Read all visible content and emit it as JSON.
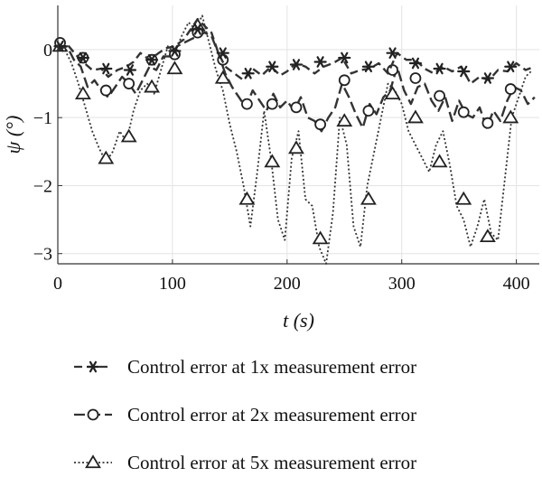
{
  "chart_data": {
    "type": "line",
    "xlabel": "t (s)",
    "ylabel": "ψ (°)",
    "xlim": [
      0,
      420
    ],
    "ylim": [
      -3.15,
      0.65
    ],
    "x_ticks": [
      0,
      100,
      200,
      300,
      400
    ],
    "y_ticks": [
      0,
      -1,
      -2,
      -3
    ],
    "grid": true,
    "legend_position": "below",
    "series": [
      {
        "name": "Control error at 1x measurement error",
        "marker": "asterisk",
        "dash": "dashed",
        "color": "#333333",
        "x": [
          0,
          8,
          16,
          22,
          30,
          38,
          44,
          52,
          60,
          66,
          72,
          80,
          88,
          94,
          102,
          110,
          116,
          122,
          128,
          134,
          140,
          146,
          154,
          162,
          170,
          178,
          186,
          194,
          200,
          208,
          216,
          224,
          232,
          240,
          248,
          256,
          264,
          272,
          280,
          288,
          296,
          304,
          312,
          320,
          328,
          336,
          344,
          352,
          360,
          368,
          376,
          384,
          392,
          400,
          408,
          416
        ],
        "y": [
          0.0,
          0.08,
          -0.08,
          -0.18,
          -0.3,
          -0.28,
          -0.4,
          -0.3,
          -0.25,
          -0.18,
          -0.05,
          -0.15,
          -0.05,
          0.02,
          0.05,
          0.15,
          0.3,
          0.45,
          0.35,
          0.25,
          -0.05,
          -0.25,
          -0.35,
          -0.45,
          -0.28,
          -0.38,
          -0.25,
          -0.38,
          -0.32,
          -0.2,
          -0.25,
          -0.35,
          -0.25,
          -0.2,
          -0.12,
          -0.35,
          -0.3,
          -0.28,
          -0.2,
          -0.35,
          -0.05,
          -0.15,
          -0.15,
          -0.28,
          -0.35,
          -0.25,
          -0.32,
          -0.25,
          -0.5,
          -0.4,
          -0.45,
          -0.3,
          -0.32,
          -0.2,
          -0.3,
          -0.25
        ],
        "marker_x": [
          2,
          22,
          42,
          63,
          82,
          102,
          122,
          144,
          166,
          187,
          208,
          229,
          250,
          271,
          292,
          312,
          333,
          354,
          375,
          395
        ],
        "marker_y": [
          0.05,
          -0.12,
          -0.28,
          -0.3,
          -0.15,
          -0.02,
          0.3,
          -0.05,
          -0.35,
          -0.25,
          -0.22,
          -0.18,
          -0.12,
          -0.25,
          -0.05,
          -0.2,
          -0.28,
          -0.32,
          -0.42,
          -0.25
        ]
      },
      {
        "name": "Control error at 2x measurement error",
        "marker": "circle",
        "dash": "longdash",
        "color": "#333333",
        "x": [
          0,
          8,
          14,
          20,
          26,
          32,
          38,
          44,
          50,
          56,
          62,
          68,
          74,
          80,
          86,
          92,
          98,
          104,
          110,
          116,
          122,
          128,
          134,
          140,
          146,
          152,
          158,
          164,
          170,
          176,
          182,
          188,
          194,
          200,
          206,
          212,
          218,
          224,
          230,
          236,
          242,
          248,
          254,
          260,
          266,
          272,
          278,
          284,
          290,
          296,
          302,
          308,
          314,
          320,
          326,
          332,
          338,
          344,
          350,
          356,
          362,
          368,
          374,
          380,
          386,
          392,
          398,
          404,
          410,
          416
        ],
        "y": [
          0.0,
          0.05,
          -0.15,
          -0.25,
          -0.55,
          -0.45,
          -0.6,
          -0.7,
          -0.55,
          -0.4,
          -0.5,
          -0.65,
          -0.45,
          -0.25,
          -0.3,
          -0.1,
          -0.1,
          0.05,
          0.1,
          0.15,
          0.2,
          0.25,
          0.2,
          -0.05,
          -0.35,
          -0.55,
          -0.7,
          -0.85,
          -0.6,
          -0.75,
          -0.9,
          -0.65,
          -0.85,
          -0.75,
          -0.9,
          -0.7,
          -1.0,
          -1.05,
          -1.2,
          -1.0,
          -0.85,
          -0.5,
          -0.7,
          -0.95,
          -1.15,
          -0.8,
          -0.95,
          -0.7,
          -0.6,
          -0.25,
          -0.6,
          -0.8,
          -0.55,
          -0.5,
          -0.75,
          -0.9,
          -0.7,
          -1.05,
          -0.75,
          -0.95,
          -1.0,
          -0.85,
          -1.15,
          -0.9,
          -1.05,
          -0.75,
          -0.55,
          -0.6,
          -0.8,
          -0.7
        ],
        "marker_x": [
          2,
          22,
          42,
          62,
          82,
          102,
          122,
          144,
          165,
          187,
          208,
          229,
          250,
          271,
          292,
          312,
          333,
          354,
          375,
          395
        ],
        "marker_y": [
          0.1,
          -0.12,
          -0.6,
          -0.5,
          -0.15,
          -0.07,
          0.25,
          -0.15,
          -0.8,
          -0.8,
          -0.85,
          -1.1,
          -0.45,
          -0.9,
          -0.3,
          -0.42,
          -0.68,
          -0.92,
          -1.08,
          -0.58
        ]
      },
      {
        "name": "Control error at 5x measurement error",
        "marker": "triangle",
        "dash": "dotted",
        "color": "#333333",
        "x": [
          0,
          6,
          12,
          18,
          24,
          30,
          36,
          42,
          48,
          54,
          60,
          66,
          72,
          78,
          84,
          90,
          96,
          102,
          108,
          114,
          120,
          126,
          132,
          138,
          144,
          150,
          156,
          162,
          168,
          174,
          180,
          186,
          192,
          198,
          204,
          210,
          216,
          222,
          228,
          234,
          240,
          246,
          252,
          258,
          264,
          270,
          276,
          282,
          288,
          294,
          300,
          306,
          312,
          318,
          324,
          330,
          336,
          342,
          348,
          354,
          360,
          366,
          372,
          378,
          384,
          390,
          396,
          402,
          408,
          414
        ],
        "y": [
          0.05,
          0.0,
          -0.2,
          -0.5,
          -0.85,
          -1.2,
          -1.45,
          -1.65,
          -1.5,
          -1.2,
          -1.35,
          -0.9,
          -0.6,
          -0.5,
          -0.65,
          -0.3,
          0.05,
          -0.05,
          0.2,
          0.4,
          0.3,
          0.5,
          0.1,
          -0.3,
          -0.6,
          -1.1,
          -1.5,
          -2.0,
          -2.6,
          -1.8,
          -0.9,
          -1.6,
          -2.5,
          -2.8,
          -1.6,
          -1.2,
          -2.2,
          -2.3,
          -2.9,
          -3.15,
          -2.4,
          -1.0,
          -1.4,
          -2.6,
          -2.9,
          -2.0,
          -1.5,
          -1.0,
          -0.5,
          -0.6,
          -0.8,
          -1.2,
          -1.4,
          -1.6,
          -1.8,
          -1.4,
          -1.2,
          -1.7,
          -2.3,
          -2.5,
          -2.9,
          -2.6,
          -2.2,
          -2.7,
          -2.8,
          -1.9,
          -1.0,
          -0.7,
          -0.4,
          -0.3
        ],
        "marker_x": [
          2,
          22,
          42,
          62,
          82,
          102,
          122,
          144,
          165,
          187,
          208,
          229,
          250,
          271,
          292,
          312,
          333,
          354,
          375,
          395
        ],
        "marker_y": [
          0.05,
          -0.65,
          -1.6,
          -1.28,
          -0.55,
          -0.28,
          0.35,
          -0.42,
          -2.2,
          -1.65,
          -1.45,
          -2.78,
          -1.05,
          -2.2,
          -0.65,
          -1.0,
          -1.65,
          -2.2,
          -2.75,
          -1.0
        ]
      }
    ]
  }
}
